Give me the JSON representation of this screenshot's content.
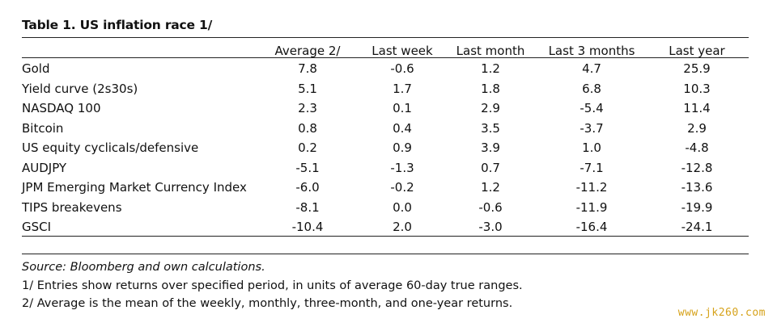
{
  "title": "Table 1. US inflation race 1/",
  "table": {
    "columns": [
      "",
      "Average 2/",
      "Last week",
      "Last month",
      "Last 3 months",
      "Last year"
    ],
    "rows": [
      [
        "Gold",
        "7.8",
        "-0.6",
        "1.2",
        "4.7",
        "25.9"
      ],
      [
        "Yield curve (2s30s)",
        "5.1",
        "1.7",
        "1.8",
        "6.8",
        "10.3"
      ],
      [
        "NASDAQ 100",
        "2.3",
        "0.1",
        "2.9",
        "-5.4",
        "11.4"
      ],
      [
        "Bitcoin",
        "0.8",
        "0.4",
        "3.5",
        "-3.7",
        "2.9"
      ],
      [
        "US equity cyclicals/defensive",
        "0.2",
        "0.9",
        "3.9",
        "1.0",
        "-4.8"
      ],
      [
        "AUDJPY",
        "-5.1",
        "-1.3",
        "0.7",
        "-7.1",
        "-12.8"
      ],
      [
        "JPM Emerging Market Currency Index",
        "-6.0",
        "-0.2",
        "1.2",
        "-11.2",
        "-13.6"
      ],
      [
        "TIPS breakevens",
        "-8.1",
        "0.0",
        "-0.6",
        "-11.9",
        "-19.9"
      ],
      [
        "GSCI",
        "-10.4",
        "2.0",
        "-3.0",
        "-16.4",
        "-24.1"
      ]
    ]
  },
  "notes": {
    "source": "Source: Bloomberg and own calculations.",
    "note1": "1/ Entries show returns over specified period, in units of average 60-day true ranges.",
    "note2": "2/ Average is the mean of the weekly, monthly, three-month, and one-year returns."
  },
  "watermark": "www.jk260.com"
}
